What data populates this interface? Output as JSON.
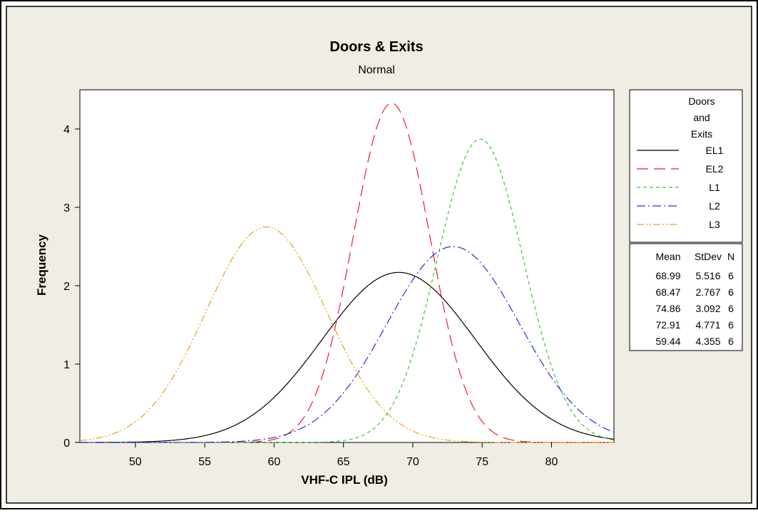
{
  "chart_data": {
    "type": "line",
    "title": "Doors & Exits",
    "subtitle": "Normal",
    "xlabel": "VHF-C IPL (dB)",
    "ylabel": "Frequency",
    "xlim": [
      46,
      84.5
    ],
    "ylim": [
      0,
      4.5
    ],
    "xticks": [
      50,
      55,
      60,
      65,
      70,
      75,
      80
    ],
    "yticks": [
      0,
      1,
      2,
      3,
      4
    ],
    "legend": {
      "title_lines": [
        "Doors",
        "and",
        "Exits"
      ],
      "position": "right",
      "entries": [
        {
          "name": "EL1",
          "color": "#000000",
          "dash": "solid"
        },
        {
          "name": "EL2",
          "color": "#e8202a",
          "dash": "long-dash"
        },
        {
          "name": "L1",
          "color": "#3cc43c",
          "dash": "short-dash"
        },
        {
          "name": "L2",
          "color": "#2a2aee",
          "dash": "dash-dot"
        },
        {
          "name": "L3",
          "color": "#e8a21a",
          "dash": "dash-dot-dot"
        }
      ]
    },
    "stats_table": {
      "headers": [
        "Mean",
        "StDev",
        "N"
      ],
      "rows": [
        [
          "68.99",
          "5.516",
          "6"
        ],
        [
          "68.47",
          "2.767",
          "6"
        ],
        [
          "74.86",
          "3.092",
          "6"
        ],
        [
          "72.91",
          "4.771",
          "6"
        ],
        [
          "59.44",
          "4.355",
          "6"
        ]
      ]
    },
    "series": [
      {
        "legend_name": "EL1",
        "mean": 68.99,
        "stdev": 5.516,
        "n": 6,
        "peak": 2.17,
        "color": "#000000"
      },
      {
        "legend_name": "EL2",
        "mean": 68.47,
        "stdev": 2.767,
        "n": 6,
        "peak": 4.33,
        "color": "#e8202a"
      },
      {
        "legend_name": "L1",
        "mean": 74.86,
        "stdev": 3.092,
        "n": 6,
        "peak": 3.87,
        "color": "#3cc43c"
      },
      {
        "legend_name": "L2",
        "mean": 72.91,
        "stdev": 4.771,
        "n": 6,
        "peak": 2.5,
        "color": "#2a2aee"
      },
      {
        "legend_name": "L3",
        "mean": 59.44,
        "stdev": 4.355,
        "n": 6,
        "peak": 2.75,
        "color": "#e8a21a"
      }
    ],
    "colors": {
      "background": "#f0ede4",
      "plot_background": "#ffffff",
      "frame": "#000000"
    }
  }
}
